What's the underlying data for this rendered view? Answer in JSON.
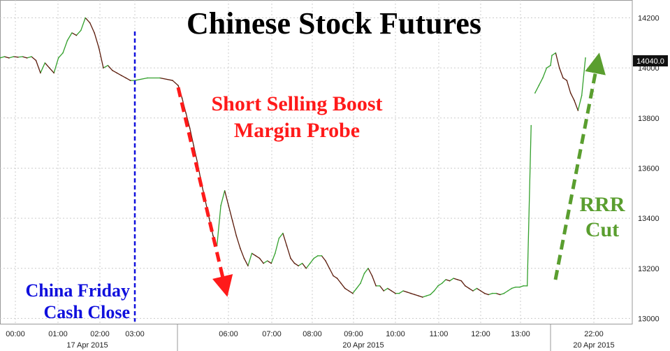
{
  "chart_data": {
    "type": "line",
    "title": "Chinese Stock Futures",
    "ylim": [
      12990,
      14260
    ],
    "y_ticks": [
      "13000",
      "13200",
      "13400",
      "13600",
      "13800",
      "14000",
      "14200"
    ],
    "x_ticks": [
      "00:00",
      "01:00",
      "02:00",
      "03:00",
      "06:00",
      "07:00",
      "08:00",
      "09:00",
      "10:00",
      "11:00",
      "12:00",
      "13:00",
      "22:00"
    ],
    "date_labels": [
      "17 Apr 2015",
      "20 Apr 2015",
      "20 Apr 2015"
    ],
    "last_value": "14040.0",
    "series": [
      {
        "x": [
          0,
          0.1,
          0.2,
          0.3,
          0.4,
          0.5,
          0.6,
          0.7,
          0.8,
          0.9,
          1.0,
          1.1,
          1.2,
          1.3,
          1.4,
          1.5,
          1.6,
          1.7,
          1.8,
          1.9,
          2.0,
          2.1,
          2.2,
          2.3,
          2.4,
          2.5,
          2.6,
          2.7,
          2.8,
          2.9,
          3.0,
          3.1,
          3.2,
          3.3,
          3.4,
          3.5,
          3.6,
          3.7,
          3.8,
          3.9,
          4.0,
          4.1,
          4.2,
          4.3,
          4.4,
          4.5,
          4.6,
          4.7,
          4.8,
          4.9,
          5.0,
          5.1,
          5.2,
          5.3,
          5.4,
          5.5,
          5.6,
          5.7,
          5.8,
          5.9,
          6.0,
          6.1,
          6.2,
          6.3,
          6.4,
          6.5,
          6.6,
          6.7,
          6.8,
          6.9,
          7.0,
          7.1,
          7.2,
          7.3,
          7.4,
          7.5,
          7.6,
          7.7,
          7.8,
          7.9,
          8.0,
          8.1,
          8.2,
          8.3,
          8.4,
          8.5,
          8.6,
          8.7,
          8.8,
          8.9,
          9.0,
          9.1,
          9.2,
          9.3,
          9.4,
          9.5,
          9.6,
          9.7,
          9.8,
          9.9,
          10.0,
          10.1,
          10.2,
          10.3,
          10.4,
          10.5,
          10.6,
          10.7,
          10.8,
          10.9,
          11.0,
          11.1,
          11.2,
          11.3,
          11.4,
          11.5,
          11.6,
          11.7,
          11.8,
          11.9,
          12.0,
          12.1,
          12.2,
          12.3,
          12.4,
          12.5,
          12.6,
          12.7,
          12.8,
          12.9,
          13.0,
          13.1,
          13.2,
          13.3,
          13.4,
          13.5,
          13.6,
          13.7,
          13.8,
          13.9,
          14.0
        ],
        "values": [
          14040,
          14045,
          14040,
          14045,
          14043,
          14045,
          14040,
          14045,
          14030,
          13980,
          14020,
          14000,
          13980,
          14040,
          14060,
          14110,
          14140,
          14130,
          14150,
          14200,
          14180,
          14140,
          14080,
          14000,
          14010,
          13990,
          13980,
          13970,
          13960,
          13950,
          13950,
          13960,
          13960,
          13950,
          13930,
          13880,
          13820,
          13760,
          13690,
          13620,
          13540,
          13470,
          13400,
          13330,
          13290,
          13450,
          13510,
          13450,
          13390,
          13330,
          13280,
          13240,
          13210,
          13260,
          13250,
          13240,
          13220,
          13230,
          13220,
          13260,
          13320,
          13340,
          13290,
          13240,
          13220,
          13210,
          13220,
          13200,
          13220,
          13240,
          13250,
          13250,
          13230,
          13200,
          13170,
          13160,
          13140,
          13120,
          13110,
          13100,
          13120,
          13140,
          13180,
          13200,
          13170,
          13130,
          13130,
          13110,
          13120,
          13110,
          13100,
          13100,
          13110,
          13105,
          13100,
          13095,
          13090,
          13085,
          13090,
          13095,
          13110,
          13130,
          13140,
          13155,
          13150,
          13160,
          13155,
          13150,
          13130,
          13120,
          13110,
          13120,
          13110,
          13100,
          13095,
          13100,
          13100,
          13095,
          13100,
          13110,
          13120,
          13125,
          13125,
          13130,
          13130,
          13770,
          13900,
          13930,
          13960,
          14000,
          14010,
          14050,
          14060,
          14000,
          13960,
          13950,
          13900,
          13870,
          13830,
          13890,
          14040
        ]
      }
    ]
  },
  "annotations": {
    "china_close_line1": "China Friday",
    "china_close_line2": "Cash Close",
    "short_line1": "Short Selling Boost",
    "short_line2": "Margin Probe",
    "rrr_line1": "RRR",
    "rrr_line2": "Cut"
  },
  "colors": {
    "line_up": "#33a02c",
    "line_down": "#5a1a0a",
    "red_arrow": "#ff1a1a",
    "green_arrow": "#5a9e2f",
    "blue_line": "#1010dd",
    "last_box": "#111111"
  }
}
